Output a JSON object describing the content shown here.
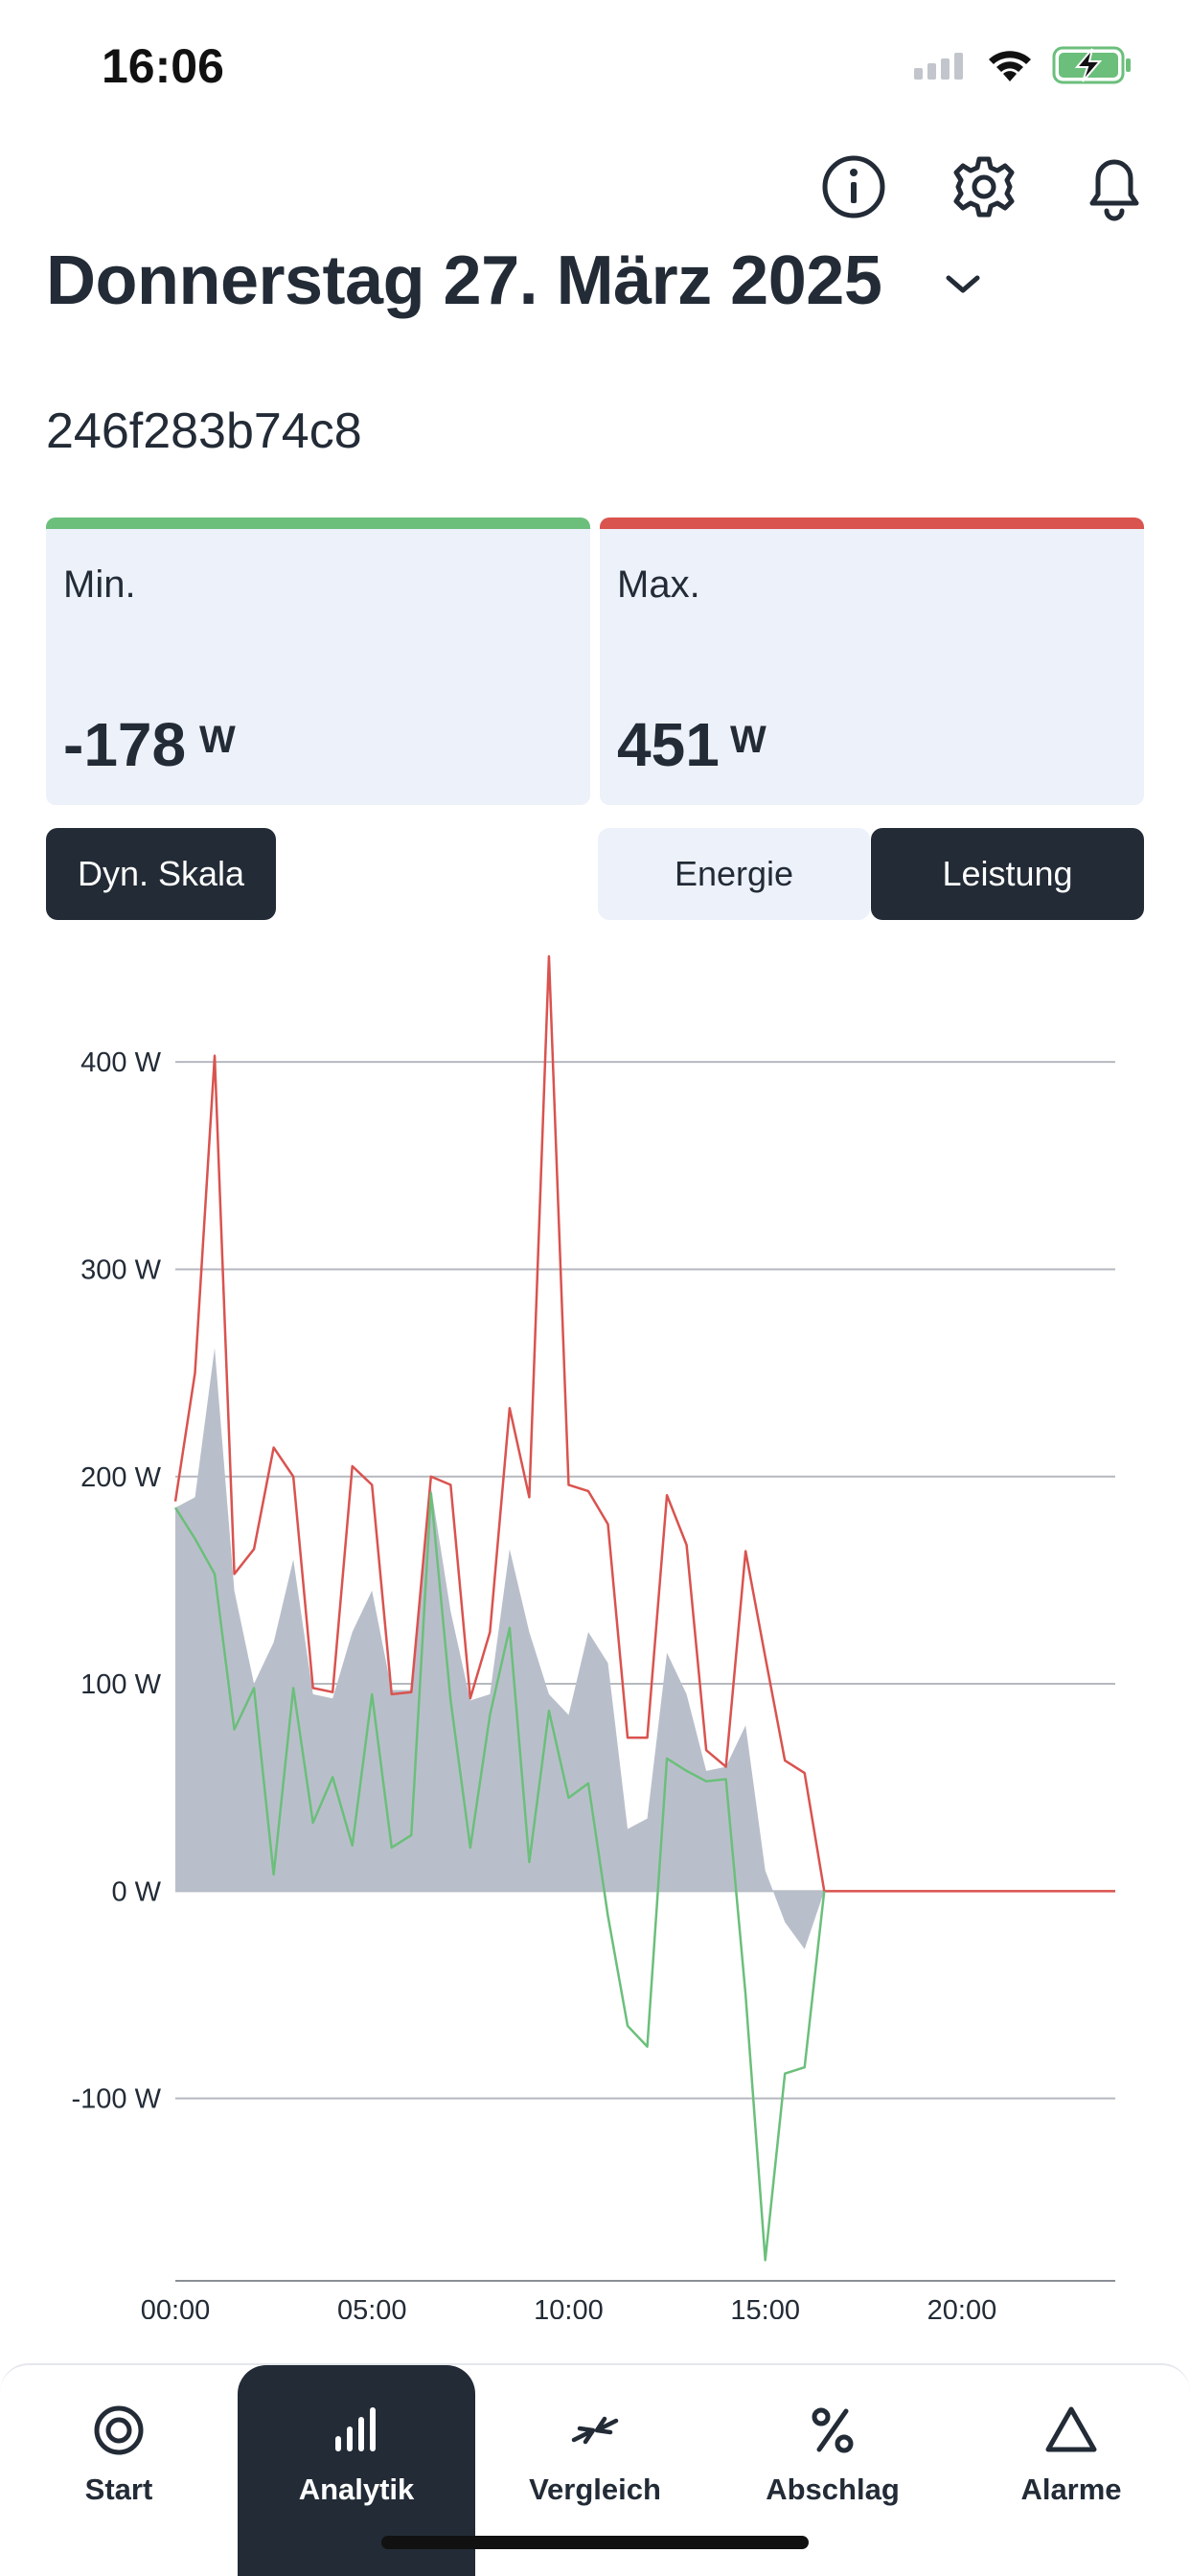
{
  "status_bar": {
    "time": "16:06"
  },
  "header": {
    "icons": [
      "info-icon",
      "gear-icon",
      "bell-icon"
    ],
    "date_title": "Donnerstag 27. März 2025",
    "device_id": "246f283b74c8"
  },
  "stats": {
    "min": {
      "label": "Min.",
      "value": "-178",
      "unit": "W",
      "color": "#6bbf7b"
    },
    "max": {
      "label": "Max.",
      "value": "451",
      "unit": "W",
      "color": "#d9534f"
    }
  },
  "controls": {
    "dyn_scale_label": "Dyn. Skala",
    "segments": [
      {
        "label": "Energie",
        "selected": false
      },
      {
        "label": "Leistung",
        "selected": true
      }
    ]
  },
  "chart_data": {
    "type": "line",
    "x_unit": "hours",
    "xlim": [
      0,
      23.9
    ],
    "ylim": [
      -188,
      450
    ],
    "y_ticks": [
      -100,
      0,
      100,
      200,
      300,
      400
    ],
    "y_tick_labels": [
      "-100 W",
      "0 W",
      "100 W",
      "200 W",
      "300 W",
      "400 W"
    ],
    "x_ticks": [
      0,
      5,
      10,
      15,
      20
    ],
    "x_tick_labels": [
      "00:00",
      "05:00",
      "10:00",
      "15:00",
      "20:00"
    ],
    "grid": true,
    "series": [
      {
        "kind": "area",
        "color": "#b9bfca",
        "x": [
          0,
          0.5,
          1.0,
          1.5,
          2.0,
          2.5,
          3.0,
          3.5,
          4.0,
          4.5,
          5.0,
          5.5,
          6.0,
          6.5,
          7.0,
          7.5,
          8.0,
          8.5,
          9.0,
          9.5,
          10.0,
          10.5,
          11.0,
          11.5,
          12.0,
          12.5,
          13.0,
          13.5,
          14.0,
          14.5,
          15.0,
          15.5,
          16.0,
          16.5
        ],
        "y": [
          185,
          190,
          262,
          145,
          100,
          120,
          160,
          95,
          93,
          125,
          145,
          97,
          97,
          195,
          135,
          92,
          95,
          165,
          125,
          95,
          85,
          125,
          110,
          30,
          35,
          115,
          95,
          58,
          60,
          80,
          10,
          -15,
          -28,
          0
        ]
      },
      {
        "kind": "line",
        "color": "#d9534f",
        "x": [
          0,
          0.5,
          1.0,
          1.5,
          2.0,
          2.5,
          3.0,
          3.5,
          4.0,
          4.5,
          5.0,
          5.5,
          6.0,
          6.5,
          7.0,
          7.5,
          8.0,
          8.5,
          9.0,
          9.5,
          10.0,
          10.5,
          11.0,
          11.5,
          12.0,
          12.5,
          13.0,
          13.5,
          14.0,
          14.5,
          15.0,
          15.5,
          16.0,
          16.5,
          23.9
        ],
        "y": [
          188,
          250,
          403,
          153,
          165,
          214,
          200,
          98,
          96,
          205,
          196,
          95,
          96,
          200,
          196,
          93,
          125,
          233,
          190,
          451,
          196,
          193,
          177,
          74,
          74,
          191,
          167,
          68,
          60,
          164,
          113,
          63,
          57,
          0,
          0
        ]
      },
      {
        "kind": "line",
        "color": "#6bbf7b",
        "x": [
          0,
          0.5,
          1.0,
          1.5,
          2.0,
          2.5,
          3.0,
          3.5,
          4.0,
          4.5,
          5.0,
          5.5,
          6.0,
          6.5,
          7.0,
          7.5,
          8.0,
          8.5,
          9.0,
          9.5,
          10.0,
          10.5,
          11.0,
          11.5,
          12.0,
          12.5,
          13.0,
          13.5,
          14.0,
          14.5,
          15.0,
          15.5,
          16.0,
          16.5
        ],
        "y": [
          185,
          170,
          153,
          78,
          98,
          8,
          98,
          33,
          55,
          22,
          95,
          21,
          27,
          192,
          92,
          21,
          85,
          127,
          14,
          87,
          45,
          52,
          -12,
          -65,
          -75,
          64,
          58,
          53,
          54,
          -50,
          -178,
          -88,
          -85,
          0
        ]
      }
    ]
  },
  "bottom_nav": {
    "items": [
      {
        "label": "Start",
        "icon": "target-icon",
        "active": false
      },
      {
        "label": "Analytik",
        "icon": "bars-icon",
        "active": true
      },
      {
        "label": "Vergleich",
        "icon": "compare-arrows-icon",
        "active": false
      },
      {
        "label": "Abschlag",
        "icon": "percent-icon",
        "active": false
      },
      {
        "label": "Alarme",
        "icon": "triangle-icon",
        "active": false
      }
    ]
  }
}
